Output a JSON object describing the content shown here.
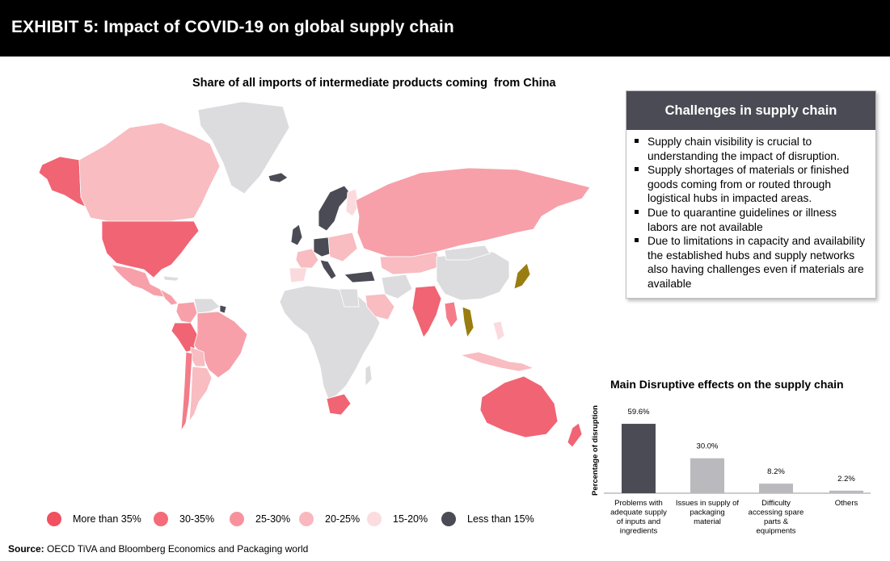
{
  "header": {
    "title": "EXHIBIT 5: Impact of COVID-19 on global supply chain"
  },
  "map": {
    "title": "Share of all imports of intermediate products coming  from China",
    "colors": {
      "no_data": "#dcdcdf",
      "more_than_35": "#f06474",
      "30_35": "#f47c89",
      "25_30": "#f7a0a9",
      "20_25": "#f8bcc1",
      "15_20": "#fbdadd",
      "less_than_15": "#4b4b55",
      "highlight": "#9a7d10"
    },
    "legend": [
      {
        "label": "More than 35%",
        "color": "#f0505f"
      },
      {
        "label": "30-35%",
        "color": "#f56b78"
      },
      {
        "label": "25-30%",
        "color": "#f7929c"
      },
      {
        "label": "20-25%",
        "color": "#f9b8be"
      },
      {
        "label": "15-20%",
        "color": "#fcdcdf"
      },
      {
        "label": "Less than 15%",
        "color": "#4b4b55"
      }
    ]
  },
  "challenges": {
    "title": "Challenges in supply chain",
    "items": [
      "Supply chain visibility is crucial to understanding the impact of disruption.",
      "Supply shortages of materials or finished goods coming from or routed through logistical hubs in impacted areas.",
      "Due to quarantine guidelines or illness labors are not available",
      "Due to limitations in capacity and availability the established hubs and supply networks also having challenges even if materials are available"
    ]
  },
  "chart_data": {
    "type": "bar",
    "title": "Main Disruptive effects on the supply chain",
    "ylabel": "Percentage of disruption",
    "xlabel": "",
    "categories": [
      [
        "Problems with",
        "adequate supply",
        "of inputs and",
        "ingredients"
      ],
      [
        "Issues in supply of",
        "packaging",
        "material"
      ],
      [
        "Difficulty",
        "accessing spare",
        "parts &",
        "equipments"
      ],
      [
        "Others"
      ]
    ],
    "values": [
      59.6,
      30.0,
      8.2,
      2.2
    ],
    "value_labels": [
      "59.6%",
      "30.0%",
      "8.2%",
      "2.2%"
    ],
    "bar_colors": [
      "#4b4b55",
      "#b9b9be",
      "#b9b9be",
      "#b9b9be"
    ],
    "ylim": [
      0,
      70
    ],
    "grid": false
  },
  "source": {
    "label": "Source:",
    "text": " OECD TiVA and Bloomberg Economics and Packaging world"
  }
}
